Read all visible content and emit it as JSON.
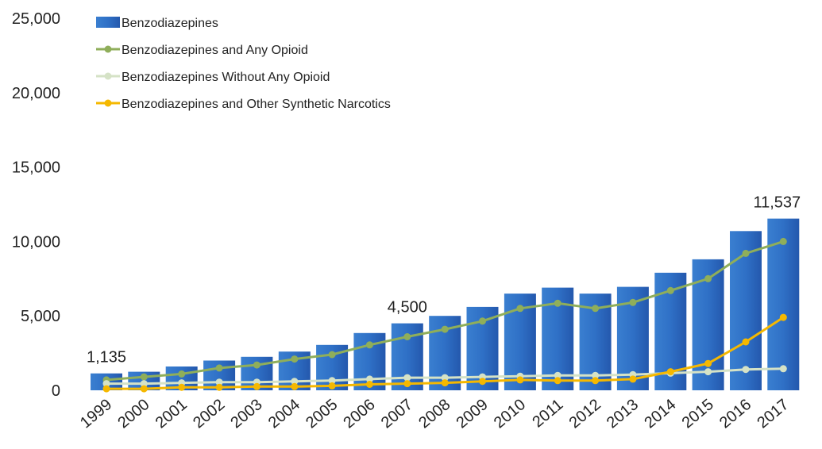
{
  "chart_data": {
    "type": "bar",
    "title": "",
    "xlabel": "",
    "ylabel": "",
    "ylim": [
      0,
      25000
    ],
    "yticks": [
      0,
      5000,
      10000,
      15000,
      20000,
      25000
    ],
    "ytick_labels": [
      "0",
      "5,000",
      "10,000",
      "15,000",
      "20,000",
      "25,000"
    ],
    "categories": [
      "1999",
      "2000",
      "2001",
      "2002",
      "2003",
      "2004",
      "2005",
      "2006",
      "2007",
      "2008",
      "2009",
      "2010",
      "2011",
      "2012",
      "2013",
      "2014",
      "2015",
      "2016",
      "2017"
    ],
    "grid": false,
    "legend_position": "top-left",
    "series": [
      {
        "name": "Benzodiazepines",
        "kind": "bar",
        "color": "#2e6fc4",
        "values": [
          1135,
          1250,
          1600,
          2000,
          2250,
          2600,
          3050,
          3850,
          4500,
          5000,
          5600,
          6500,
          6900,
          6500,
          6950,
          7900,
          8800,
          10700,
          11537
        ]
      },
      {
        "name": "Benzodiazepines and Any Opioid",
        "kind": "line",
        "color": "#8fae5a",
        "values": [
          700,
          900,
          1100,
          1500,
          1700,
          2100,
          2400,
          3050,
          3600,
          4100,
          4650,
          5500,
          5850,
          5500,
          5900,
          6700,
          7500,
          9200,
          10000
        ]
      },
      {
        "name": "Benzodiazepines Without Any Opioid",
        "kind": "line",
        "color": "#d5e2c6",
        "values": [
          450,
          450,
          500,
          550,
          550,
          600,
          650,
          750,
          850,
          850,
          900,
          950,
          1000,
          1000,
          1050,
          1150,
          1250,
          1400,
          1450
        ]
      },
      {
        "name": "Benzodiazepines and Other Synthetic Narcotics",
        "kind": "line",
        "color": "#f5b800",
        "values": [
          100,
          100,
          200,
          200,
          250,
          250,
          300,
          400,
          450,
          500,
          600,
          700,
          650,
          650,
          750,
          1250,
          1800,
          3250,
          4900
        ]
      }
    ],
    "data_labels": [
      {
        "category": "1999",
        "text": "1,135"
      },
      {
        "category": "2007",
        "text": "4,500"
      },
      {
        "category": "2017",
        "text": "11,537"
      }
    ]
  }
}
